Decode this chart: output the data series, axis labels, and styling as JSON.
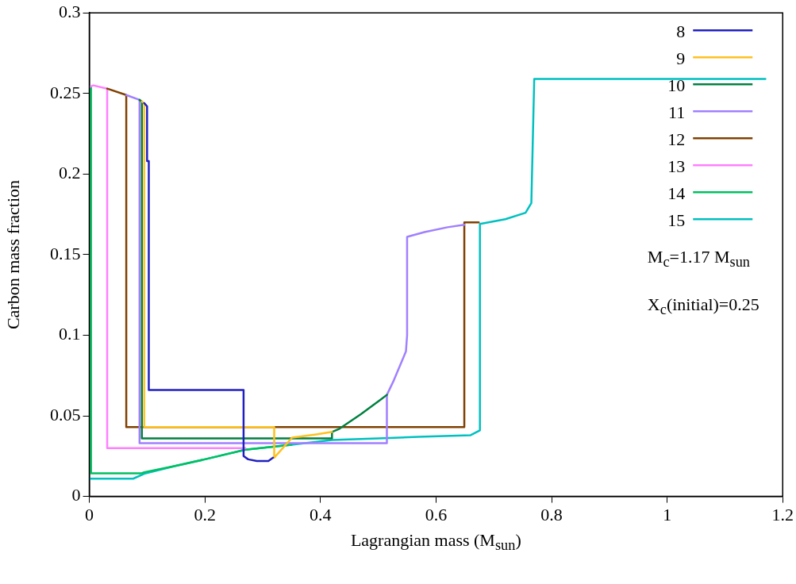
{
  "chart_data": {
    "type": "line",
    "xlabel": "Lagrangian mass (M$_{sun}$)",
    "ylabel": "Carbon mass fraction",
    "annotations": [
      "M$_{c}$=1.17 M$_{sun}$",
      "X$_{c}$(initial)=0.25"
    ],
    "xlim": [
      0,
      1.2
    ],
    "xticks": [
      0,
      0.2,
      0.4,
      0.6,
      0.8,
      1,
      1.2
    ],
    "ylim": [
      0,
      0.3
    ],
    "yticks": [
      0,
      0.05,
      0.1,
      0.15,
      0.2,
      0.25,
      0.3
    ],
    "grid": false,
    "legend": "top right",
    "marker": "none",
    "line_style": "solid",
    "series": [
      {
        "name": "8",
        "color": "#2020c0",
        "x": [
          0.095,
          0.1,
          0.1,
          0.103,
          0.103,
          0.267,
          0.267,
          0.275,
          0.29,
          0.31,
          0.318
        ],
        "values": [
          0.244,
          0.242,
          0.208,
          0.208,
          0.066,
          0.066,
          0.025,
          0.023,
          0.022,
          0.022,
          0.024
        ]
      },
      {
        "name": "9",
        "color": "#ffc020",
        "x": [
          0.091,
          0.095,
          0.095,
          0.32,
          0.32,
          0.351,
          0.393,
          0.42
        ],
        "values": [
          0.245,
          0.244,
          0.043,
          0.043,
          0.024,
          0.0365,
          0.0385,
          0.04
        ]
      },
      {
        "name": "10",
        "color": "#008040",
        "x": [
          0.087,
          0.091,
          0.091,
          0.42,
          0.42,
          0.433,
          0.47,
          0.504,
          0.515
        ],
        "values": [
          0.246,
          0.245,
          0.036,
          0.036,
          0.04,
          0.042,
          0.051,
          0.06,
          0.063
        ]
      },
      {
        "name": "11",
        "color": "#a080ff",
        "x": [
          0.064,
          0.087,
          0.087,
          0.515,
          0.515,
          0.527,
          0.548,
          0.55,
          0.55,
          0.58,
          0.62,
          0.649
        ],
        "values": [
          0.249,
          0.246,
          0.033,
          0.033,
          0.063,
          0.072,
          0.09,
          0.1,
          0.161,
          0.164,
          0.167,
          0.1685
        ]
      },
      {
        "name": "12",
        "color": "#804000",
        "x": [
          0.031,
          0.064,
          0.064,
          0.649,
          0.649,
          0.674
        ],
        "values": [
          0.253,
          0.249,
          0.043,
          0.043,
          0.17,
          0.17
        ]
      },
      {
        "name": "13",
        "color": "#ff80ff",
        "x": [
          0,
          0.007,
          0.031,
          0.031,
          0.27
        ],
        "values": [
          0.254,
          0.255,
          0.253,
          0.03,
          0.03
        ]
      },
      {
        "name": "14",
        "color": "#00c060",
        "x": [
          0,
          0.003,
          0.003,
          0.09,
          0.095,
          0.15,
          0.2,
          0.27,
          0.35
        ],
        "values": [
          0.254,
          0.254,
          0.0143,
          0.0143,
          0.015,
          0.019,
          0.023,
          0.029,
          0.032
        ]
      },
      {
        "name": "15",
        "color": "#00c0c0",
        "x": [
          0,
          0.076,
          0.095,
          0.15,
          0.2,
          0.27,
          0.35,
          0.42,
          0.5,
          0.57,
          0.66,
          0.676,
          0.676,
          0.72,
          0.755,
          0.765,
          0.77,
          1.17
        ],
        "values": [
          0.011,
          0.011,
          0.014,
          0.019,
          0.023,
          0.029,
          0.032,
          0.035,
          0.036,
          0.037,
          0.038,
          0.041,
          0.169,
          0.172,
          0.176,
          0.182,
          0.259,
          0.259
        ]
      }
    ]
  }
}
